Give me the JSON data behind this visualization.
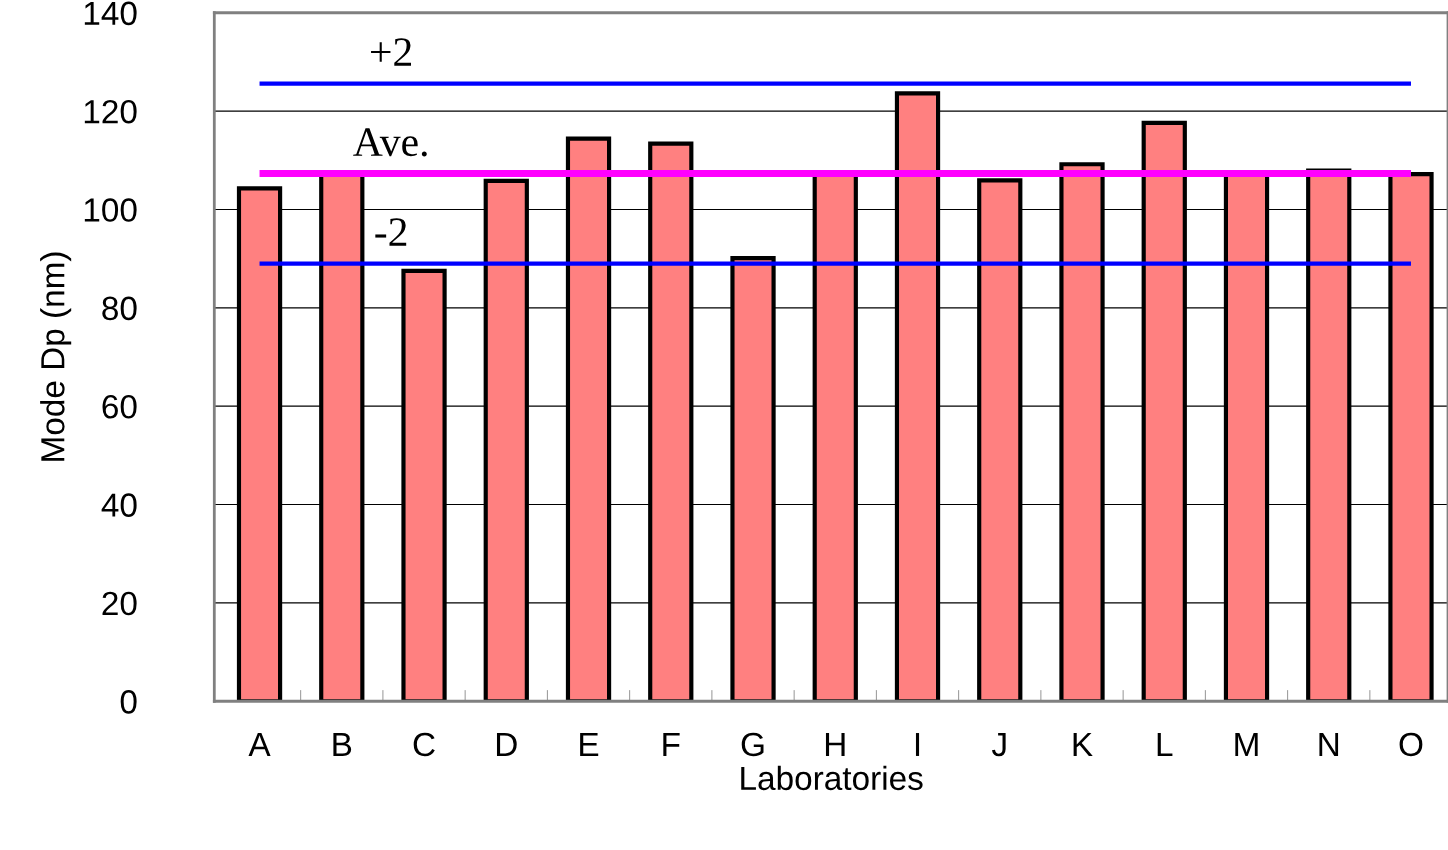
{
  "chart_data": {
    "type": "bar",
    "xlabel": "Laboratories",
    "ylabel": "Mode Dp (nm)",
    "categories": [
      "A",
      "B",
      "C",
      "D",
      "E",
      "F",
      "G",
      "H",
      "I",
      "J",
      "K",
      "L",
      "M",
      "N",
      "O"
    ],
    "values": [
      104.3,
      107.5,
      87.5,
      105.8,
      114.4,
      113.4,
      90.1,
      107.5,
      123.6,
      105.9,
      109.2,
      117.6,
      107.5,
      107.9,
      107.2
    ],
    "color": "#ff8080",
    "ylim": [
      0,
      140
    ],
    "yticks": [
      0,
      20,
      40,
      60,
      80,
      100,
      120,
      140
    ],
    "grid": "y",
    "ref_lines": [
      {
        "axis": "y",
        "value": 125.6,
        "color": "#0000ff"
      },
      {
        "axis": "y",
        "value": 107.3,
        "color": "#ff00ff"
      },
      {
        "axis": "y",
        "value": 89.0,
        "color": "#0000ff"
      }
    ],
    "annotations": [
      {
        "text": "+2",
        "y": 125.6
      },
      {
        "text": "Ave.",
        "y": 107.3
      },
      {
        "text": "-2",
        "y": 89.0
      }
    ]
  }
}
